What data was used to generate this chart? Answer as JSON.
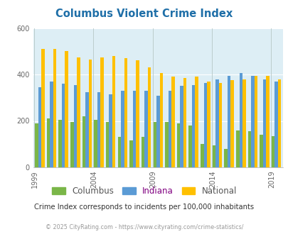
{
  "title": "Columbus Violent Crime Index",
  "subtitle": "Crime Index corresponds to incidents per 100,000 inhabitants",
  "footer": "© 2025 CityRating.com - https://www.cityrating.com/crime-statistics/",
  "years": [
    1999,
    2000,
    2001,
    2002,
    2003,
    2004,
    2005,
    2006,
    2007,
    2008,
    2009,
    2010,
    2011,
    2012,
    2013,
    2014,
    2015,
    2016,
    2017,
    2018,
    2019,
    2020,
    2021
  ],
  "columbus": [
    190,
    210,
    205,
    195,
    220,
    205,
    195,
    130,
    115,
    130,
    195,
    195,
    190,
    180,
    100,
    95,
    80,
    160,
    155,
    140,
    135,
    0,
    0
  ],
  "indiana": [
    345,
    370,
    360,
    355,
    325,
    325,
    315,
    330,
    330,
    330,
    310,
    330,
    350,
    355,
    365,
    380,
    395,
    405,
    395,
    380,
    370,
    0,
    0
  ],
  "national": [
    510,
    510,
    500,
    475,
    465,
    475,
    480,
    470,
    460,
    430,
    405,
    390,
    385,
    390,
    370,
    365,
    375,
    380,
    395,
    395,
    380,
    0,
    0
  ],
  "columbus_color": "#7ab648",
  "indiana_color": "#5b9bd5",
  "national_color": "#ffc000",
  "outer_bg": "#ffffff",
  "plot_bg_color": "#ddeef5",
  "ylim": [
    0,
    600
  ],
  "yticks": [
    0,
    200,
    400,
    600
  ],
  "xtick_years": [
    1999,
    2004,
    2009,
    2014,
    2019
  ],
  "title_color": "#1f6fa8",
  "subtitle_color": "#333333",
  "footer_color": "#999999"
}
